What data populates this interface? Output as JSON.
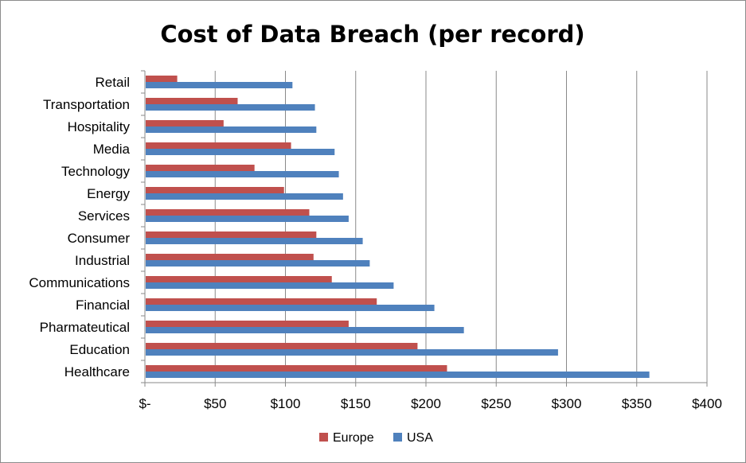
{
  "chart_data": {
    "type": "bar",
    "orientation": "horizontal",
    "title": "Cost of Data Breach (per record)",
    "xlabel": "",
    "ylabel": "",
    "xlim": [
      0,
      400
    ],
    "x_ticks": [
      0,
      50,
      100,
      150,
      200,
      250,
      300,
      350,
      400
    ],
    "x_tick_labels": [
      "$-",
      "$50",
      "$100",
      "$150",
      "$200",
      "$250",
      "$300",
      "$350",
      "$400"
    ],
    "grid": "vertical",
    "legend_position": "bottom",
    "categories": [
      "Healthcare",
      "Education",
      "Pharmateutical",
      "Financial",
      "Communications",
      "Industrial",
      "Consumer",
      "Services",
      "Energy",
      "Technology",
      "Media",
      "Hospitality",
      "Transportation",
      "Retail"
    ],
    "series": [
      {
        "name": "Europe",
        "color": "#c0504d",
        "values": [
          215,
          194,
          145,
          165,
          133,
          120,
          122,
          117,
          99,
          78,
          104,
          56,
          66,
          23
        ]
      },
      {
        "name": "USA",
        "color": "#4f81bd",
        "values": [
          359,
          294,
          227,
          206,
          177,
          160,
          155,
          145,
          141,
          138,
          135,
          122,
          121,
          105
        ]
      }
    ]
  }
}
